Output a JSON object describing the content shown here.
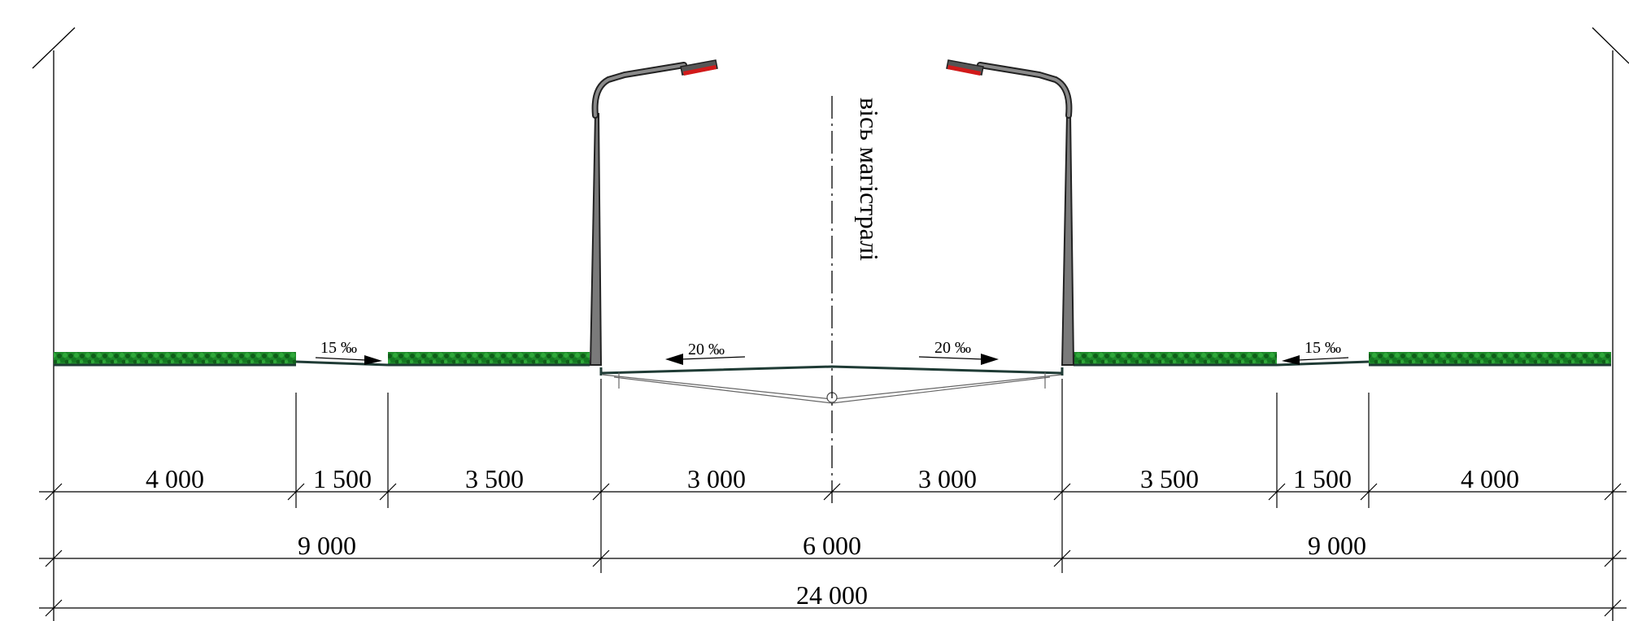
{
  "axis_label": "вісь магістралі",
  "slopes": {
    "left_sidewalk": "15 ‰",
    "left_carriageway": "20 ‰",
    "right_carriageway": "20 ‰",
    "right_sidewalk": "15 ‰"
  },
  "dimensions": {
    "row1": [
      "4 000",
      "1 500",
      "3 500",
      "3 000",
      "3 000",
      "3 500",
      "1 500",
      "4 000"
    ],
    "row2": [
      "9 000",
      "6 000",
      "9 000"
    ],
    "row3": [
      "24 000"
    ]
  },
  "colors": {
    "grass": "#1e8a2a",
    "grass_dark": "#0f5e19",
    "lamp_head": "#d21a1a",
    "pole": "#7a7a7a",
    "road": "#1f3b35"
  }
}
